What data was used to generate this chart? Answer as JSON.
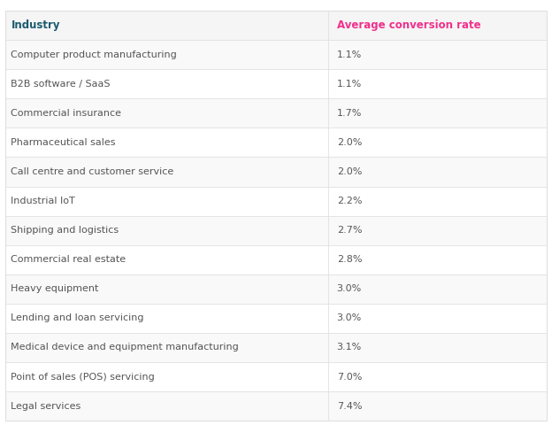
{
  "col1_header": "Industry",
  "col2_header": "Average conversion rate",
  "col1_header_color": "#1a5a6e",
  "col2_header_color": "#f0308c",
  "header_bg": "#f5f5f5",
  "row_bg_odd": "#f9f9f9",
  "row_bg_even": "#ffffff",
  "border_color": "#e0e0e0",
  "text_color": "#555555",
  "industries": [
    "Computer product manufacturing",
    "B2B software / SaaS",
    "Commercial insurance",
    "Pharmaceutical sales",
    "Call centre and customer service",
    "Industrial IoT",
    "Shipping and logistics",
    "Commercial real estate",
    "Heavy equipment",
    "Lending and loan servicing",
    "Medical device and equipment manufacturing",
    "Point of sales (POS) servicing",
    "Legal services"
  ],
  "rates": [
    "1.1%",
    "1.1%",
    "1.7%",
    "2.0%",
    "2.0%",
    "2.2%",
    "2.7%",
    "2.8%",
    "3.0%",
    "3.0%",
    "3.1%",
    "7.0%",
    "7.4%"
  ],
  "figsize": [
    6.24,
    4.8
  ],
  "dpi": 100,
  "header_font_size": 8.5,
  "row_font_size": 8.0,
  "col_split": 0.595
}
